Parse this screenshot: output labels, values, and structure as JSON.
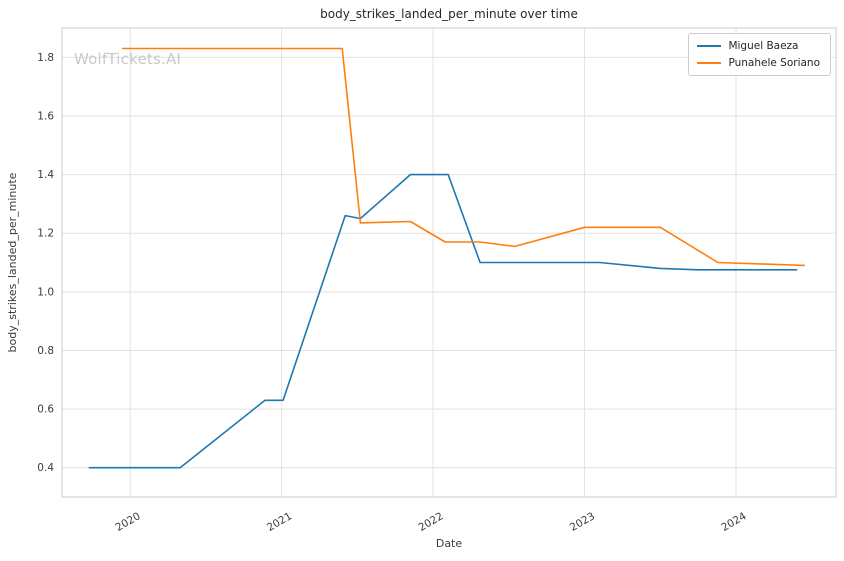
{
  "chart_data": {
    "type": "line",
    "title": "body_strikes_landed_per_minute over time",
    "xlabel": "Date",
    "ylabel": "body_strikes_landed_per_minute",
    "watermark": "WolfTickets.AI",
    "xlim": [
      2019.55,
      2024.66
    ],
    "ylim": [
      0.3,
      1.9
    ],
    "xticks": [
      2020,
      2021,
      2022,
      2023,
      2024
    ],
    "yticks": [
      0.4,
      0.6,
      0.8,
      1.0,
      1.2,
      1.4,
      1.6,
      1.8
    ],
    "grid": true,
    "legend_position": "upper right",
    "colors": {
      "grid": "#e2e2e2",
      "border": "#cccccc",
      "tick_text": "#3b3b3b"
    },
    "series": [
      {
        "name": "Miguel Baeza",
        "color": "#1f77b4",
        "points": [
          [
            2019.73,
            0.4
          ],
          [
            2020.1,
            0.4
          ],
          [
            2020.33,
            0.4
          ],
          [
            2020.89,
            0.63
          ],
          [
            2021.01,
            0.63
          ],
          [
            2021.42,
            1.26
          ],
          [
            2021.52,
            1.25
          ],
          [
            2021.85,
            1.4
          ],
          [
            2022.1,
            1.4
          ],
          [
            2022.31,
            1.1
          ],
          [
            2022.8,
            1.1
          ],
          [
            2023.1,
            1.1
          ],
          [
            2023.5,
            1.08
          ],
          [
            2023.75,
            1.075
          ],
          [
            2024.4,
            1.075
          ]
        ]
      },
      {
        "name": "Punahele Soriano",
        "color": "#ff7f0e",
        "points": [
          [
            2019.95,
            1.83
          ],
          [
            2020.6,
            1.83
          ],
          [
            2021.4,
            1.83
          ],
          [
            2021.52,
            1.235
          ],
          [
            2021.85,
            1.24
          ],
          [
            2022.08,
            1.17
          ],
          [
            2022.31,
            1.17
          ],
          [
            2022.54,
            1.155
          ],
          [
            2023.0,
            1.22
          ],
          [
            2023.5,
            1.22
          ],
          [
            2023.88,
            1.1
          ],
          [
            2024.45,
            1.09
          ]
        ]
      }
    ]
  }
}
